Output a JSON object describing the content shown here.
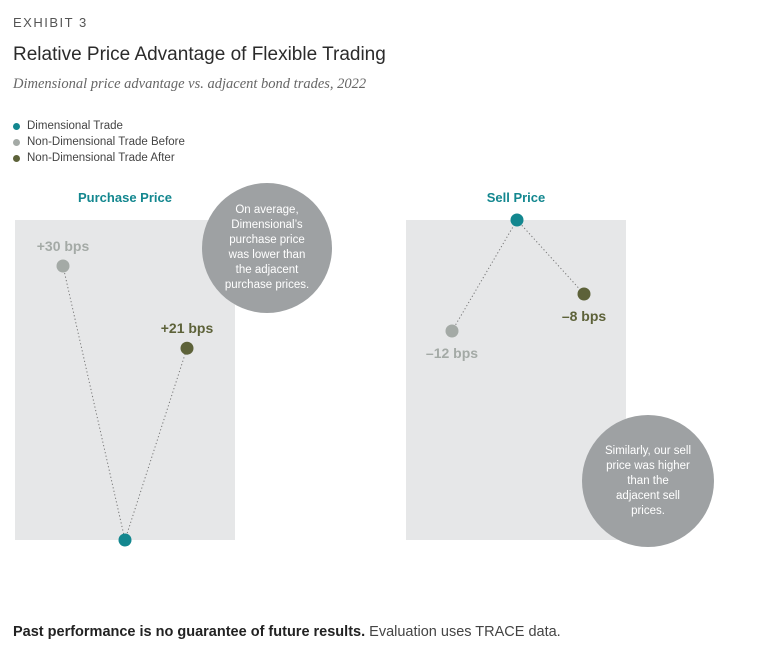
{
  "header": {
    "exhibit": "EXHIBIT 3",
    "title": "Relative Price Advantage of Flexible Trading",
    "subtitle": "Dimensional price advantage vs. adjacent bond trades, 2022"
  },
  "legend": [
    {
      "label": "Dimensional Trade",
      "color": "#13878f"
    },
    {
      "label": "Non-Dimensional Trade Before",
      "color": "#a4aaa6"
    },
    {
      "label": "Non-Dimensional Trade After",
      "color": "#5d6239"
    }
  ],
  "colors": {
    "panel_bg": "#e6e7e8",
    "dimensional": "#13878f",
    "before": "#a4aaa6",
    "after": "#5d6239",
    "callout": "#9ea1a3"
  },
  "chart_data": [
    {
      "type": "scatter",
      "title": "Purchase Price",
      "unit": "bps",
      "points": [
        {
          "series": "Non-Dimensional Trade Before",
          "order": 0,
          "value": 30,
          "label": "+30 bps"
        },
        {
          "series": "Dimensional Trade",
          "order": 1,
          "value": 0,
          "label": ""
        },
        {
          "series": "Non-Dimensional Trade After",
          "order": 2,
          "value": 21,
          "label": "+21 bps"
        }
      ],
      "ylim": [
        0,
        30
      ],
      "callout": "On average, Dimensional’s purchase price was lower than the adjacent purchase prices."
    },
    {
      "type": "scatter",
      "title": "Sell Price",
      "unit": "bps",
      "points": [
        {
          "series": "Non-Dimensional Trade Before",
          "order": 0,
          "value": -12,
          "label": "–12 bps"
        },
        {
          "series": "Dimensional Trade",
          "order": 1,
          "value": 0,
          "label": ""
        },
        {
          "series": "Non-Dimensional Trade After",
          "order": 2,
          "value": -8,
          "label": "–8 bps"
        }
      ],
      "ylim": [
        -12,
        0
      ],
      "callout": "Similarly, our sell price was higher than the adjacent sell prices."
    }
  ],
  "footnote": {
    "bold": "Past performance is no guarantee of future results.",
    "normal": "Evaluation uses TRACE data."
  }
}
